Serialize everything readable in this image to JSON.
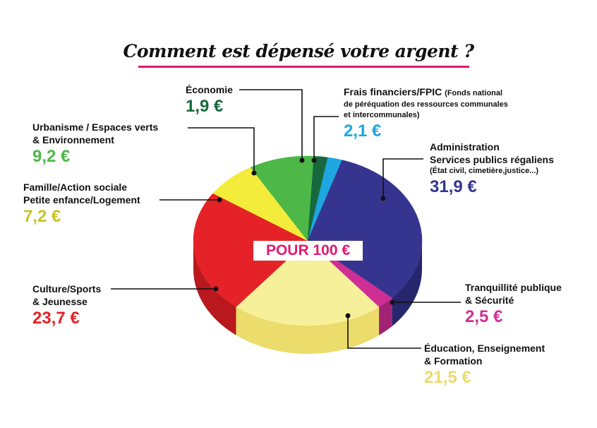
{
  "header": {
    "title": "Comment est dépensé votre argent ?"
  },
  "center_label": "POUR 100 €",
  "labels": {
    "economie": {
      "name": "Économie",
      "value": "1,9 €"
    },
    "frais": {
      "name": "Frais financiers/FPIC",
      "detail_inline": "(Fonds national",
      "detail_1": "de péréquation des ressources communales",
      "detail_2": "et intercommunales)",
      "value": "2,1 €"
    },
    "administration": {
      "name_1": "Administration",
      "name_2": "Services publics régaliens",
      "detail": "(État civil, cimetière,justice...)",
      "value": "31,9 €"
    },
    "urbanisme": {
      "name_1": "Urbanisme / Espaces verts",
      "name_2": "& Environnement",
      "value": "9,2 €"
    },
    "famille": {
      "name_1": "Famille/Action sociale",
      "name_2": "Petite enfance/Logement",
      "value": "7,2 €"
    },
    "culture": {
      "name_1": "Culture/Sports",
      "name_2": "& Jeunesse",
      "value": "23,7 €"
    },
    "tranquillite": {
      "name_1": "Tranquillité publique",
      "name_2": "& Sécurité",
      "value": "2,5 €"
    },
    "education": {
      "name_1": "Éducation, Enseignement",
      "name_2": "& Formation",
      "value": "21,5 €"
    }
  },
  "chart_data": {
    "type": "pie",
    "title": "Comment est dépensé votre argent ?",
    "center_label": "POUR 100 €",
    "unit": "€",
    "slices": [
      {
        "label": "Frais financiers/FPIC (Fonds national de péréquation des ressources communales et intercommunales)",
        "value": 2.1,
        "color": "#1ea6e0",
        "side": "#1585b5"
      },
      {
        "label": "Administration Services publics régaliens (État civil, cimetière,justice...)",
        "value": 31.9,
        "color": "#353590",
        "side": "#26266d"
      },
      {
        "label": "Tranquillité publique & Sécurité",
        "value": 2.5,
        "color": "#cf2f95",
        "side": "#a02374"
      },
      {
        "label": "Éducation, Enseignement & Formation",
        "value": 21.5,
        "color": "#f7f09a",
        "side": "#ebdc6b"
      },
      {
        "label": "Culture/Sports & Jeunesse",
        "value": 23.7,
        "color": "#e52227",
        "side": "#b8181e"
      },
      {
        "label": "Famille/Action sociale Petite enfance/Logement",
        "value": 7.2,
        "color": "#f3ec3a",
        "side": "#c9c22a"
      },
      {
        "label": "Urbanisme / Espaces verts & Environnement",
        "value": 9.2,
        "color": "#4db848",
        "side": "#3a8f36"
      },
      {
        "label": "Économie",
        "value": 1.9,
        "color": "#17693d",
        "side": "#0f4a2b"
      }
    ],
    "value_colors": {
      "economie": "#17693d",
      "frais": "#1ea6e0",
      "administration": "#353590",
      "urbanisme": "#4db848",
      "famille": "#c9c22a",
      "culture": "#e52227",
      "tranquillite": "#cf2f95",
      "education": "#ebdc6b"
    },
    "accent_color": "#e2186f"
  }
}
